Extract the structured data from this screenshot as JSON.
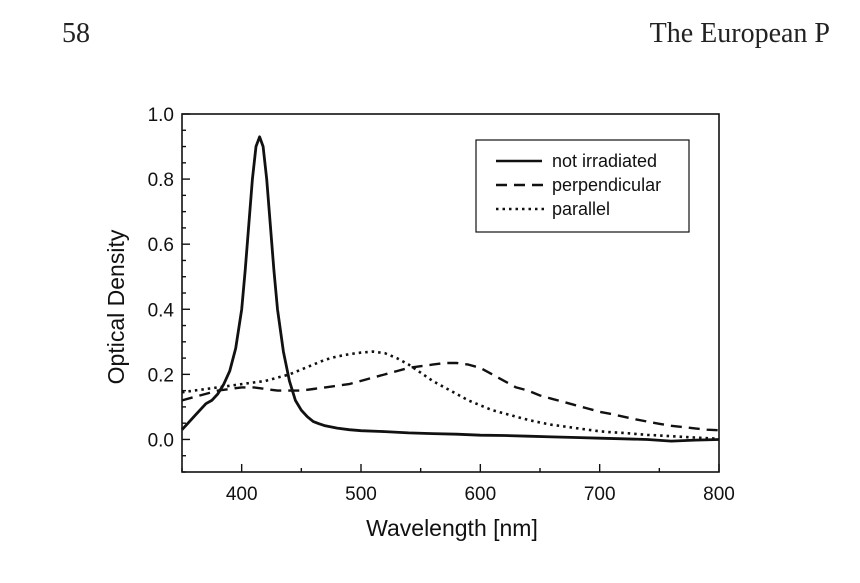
{
  "header": {
    "page_number": "58",
    "journal_title": "The European P"
  },
  "chart_data": {
    "type": "line",
    "xlabel": "Wavelength [nm]",
    "ylabel": "Optical Density",
    "xlim": [
      350,
      800
    ],
    "ylim": [
      -0.1,
      1.0
    ],
    "x_ticks": [
      400,
      500,
      600,
      700,
      800
    ],
    "y_ticks": [
      0.0,
      0.2,
      0.4,
      0.6,
      0.8,
      1.0
    ],
    "x_tick_labels": [
      "400",
      "500",
      "600",
      "700",
      "800"
    ],
    "y_tick_labels": [
      "0.0",
      "0.2",
      "0.4",
      "0.6",
      "0.8",
      "1.0"
    ],
    "grid": false,
    "legend_position": "top-right",
    "series": [
      {
        "name": "not irradiated",
        "style": "solid",
        "x": [
          350,
          355,
          360,
          365,
          370,
          375,
          380,
          385,
          390,
          395,
          400,
          403,
          406,
          409,
          412,
          415,
          418,
          421,
          424,
          427,
          430,
          435,
          440,
          445,
          450,
          455,
          460,
          465,
          470,
          480,
          490,
          500,
          520,
          540,
          560,
          580,
          600,
          620,
          640,
          660,
          680,
          700,
          720,
          740,
          760,
          780,
          800
        ],
        "y": [
          0.03,
          0.05,
          0.07,
          0.09,
          0.11,
          0.12,
          0.14,
          0.17,
          0.21,
          0.28,
          0.4,
          0.52,
          0.66,
          0.8,
          0.9,
          0.93,
          0.9,
          0.8,
          0.66,
          0.52,
          0.4,
          0.27,
          0.18,
          0.12,
          0.09,
          0.07,
          0.055,
          0.048,
          0.042,
          0.035,
          0.03,
          0.027,
          0.024,
          0.02,
          0.018,
          0.016,
          0.013,
          0.012,
          0.01,
          0.008,
          0.006,
          0.004,
          0.002,
          0.0,
          -0.005,
          -0.002,
          0.0
        ]
      },
      {
        "name": "perpendicular",
        "style": "dashed",
        "x": [
          350,
          360,
          370,
          380,
          390,
          400,
          410,
          420,
          430,
          440,
          450,
          460,
          470,
          480,
          490,
          500,
          510,
          520,
          530,
          540,
          550,
          560,
          570,
          580,
          590,
          600,
          610,
          620,
          630,
          640,
          650,
          660,
          670,
          680,
          690,
          700,
          710,
          720,
          730,
          740,
          750,
          760,
          770,
          780,
          790,
          800
        ],
        "y": [
          0.12,
          0.13,
          0.14,
          0.15,
          0.155,
          0.16,
          0.16,
          0.155,
          0.15,
          0.15,
          0.15,
          0.155,
          0.16,
          0.165,
          0.17,
          0.18,
          0.19,
          0.2,
          0.21,
          0.22,
          0.225,
          0.23,
          0.235,
          0.235,
          0.23,
          0.22,
          0.2,
          0.18,
          0.16,
          0.15,
          0.135,
          0.125,
          0.115,
          0.105,
          0.095,
          0.085,
          0.078,
          0.07,
          0.062,
          0.055,
          0.048,
          0.042,
          0.038,
          0.034,
          0.03,
          0.028
        ]
      },
      {
        "name": "parallel",
        "style": "dotted",
        "x": [
          350,
          360,
          370,
          380,
          390,
          400,
          410,
          420,
          430,
          440,
          450,
          460,
          470,
          480,
          490,
          500,
          510,
          520,
          530,
          540,
          550,
          560,
          570,
          580,
          590,
          600,
          610,
          620,
          630,
          640,
          650,
          660,
          670,
          680,
          690,
          700,
          710,
          720,
          730,
          740,
          750,
          760,
          770,
          780,
          790,
          800
        ],
        "y": [
          0.145,
          0.15,
          0.155,
          0.16,
          0.165,
          0.17,
          0.175,
          0.18,
          0.19,
          0.2,
          0.215,
          0.23,
          0.245,
          0.255,
          0.262,
          0.267,
          0.27,
          0.265,
          0.25,
          0.23,
          0.205,
          0.18,
          0.16,
          0.14,
          0.12,
          0.105,
          0.09,
          0.08,
          0.07,
          0.06,
          0.052,
          0.045,
          0.04,
          0.035,
          0.03,
          0.025,
          0.022,
          0.02,
          0.017,
          0.014,
          0.012,
          0.01,
          0.008,
          0.006,
          0.004,
          0.002
        ]
      }
    ]
  }
}
